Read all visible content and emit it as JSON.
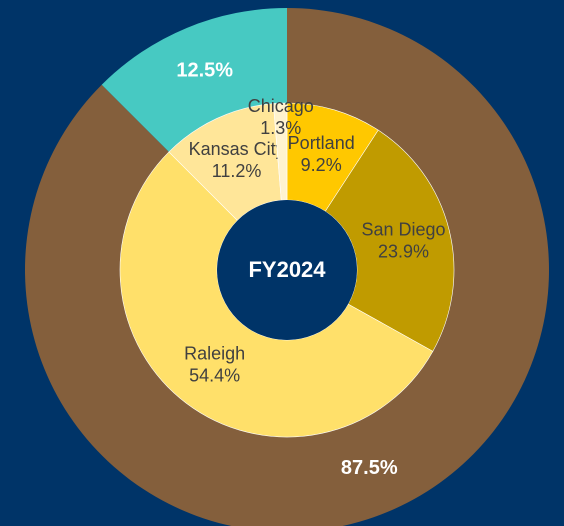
{
  "chart_data": {
    "type": "donut",
    "center_text": "FY2024",
    "rings": [
      {
        "values": [
          87.5,
          12.5
        ],
        "value_labels": [
          "87.5%",
          "12.5%"
        ],
        "colors": [
          "#845f3c",
          "#47c9c2"
        ]
      },
      {
        "categories": [
          "Portland",
          "San Diego",
          "Raleigh",
          "Kansas City",
          "Chicago"
        ],
        "values": [
          9.2,
          23.9,
          54.4,
          11.2,
          1.3
        ],
        "value_labels": [
          "9.2%",
          "23.9%",
          "54.4%",
          "11.2%",
          "1.3%"
        ],
        "colors": [
          "#ffc800",
          "#c09b00",
          "#ffe06a",
          "#ffe699",
          "#fff3cf"
        ]
      }
    ]
  }
}
